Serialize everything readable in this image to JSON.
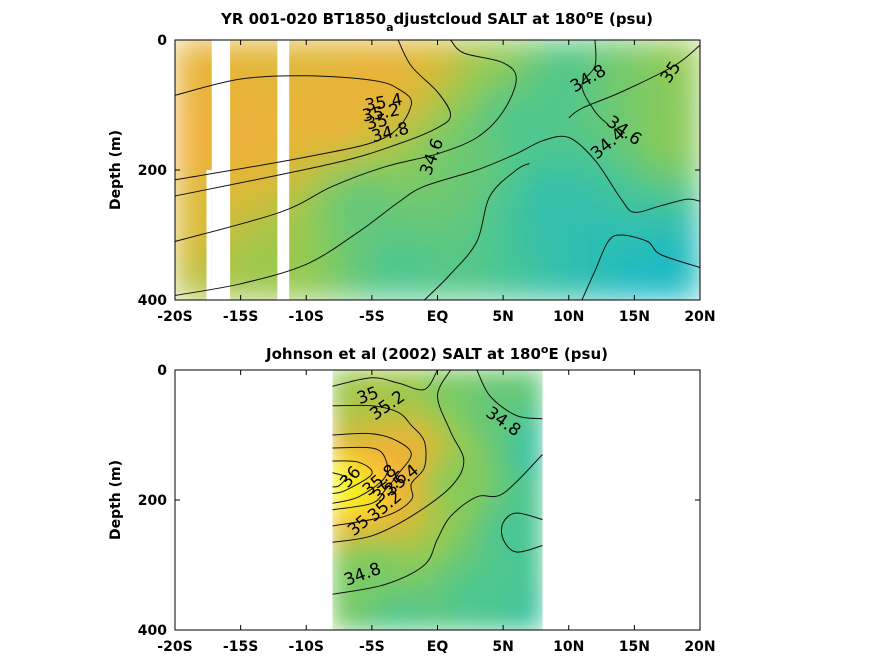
{
  "chart_data": [
    {
      "type": "contour",
      "title": {
        "main": "YR 001-020 BT1850",
        "subscript": "a",
        "rest": "djustcloud SALT at 180",
        "degree": "o",
        "tail": "E (psu)"
      },
      "xlabel": "",
      "ylabel": "Depth (m)",
      "xlim": [
        -20,
        20
      ],
      "ylim": [
        0,
        400
      ],
      "y_reversed": true,
      "colormap": [
        "#0db5d6",
        "#2fbfb0",
        "#4fc78d",
        "#8fcb53",
        "#d7bb35",
        "#f6ae3c",
        "#f8e81f",
        "#f5ff1a"
      ],
      "color_range": [
        34.2,
        36.2
      ],
      "xticks": [
        {
          "value": -20,
          "label": "-20S"
        },
        {
          "value": -15,
          "label": "-15S"
        },
        {
          "value": -10,
          "label": "-10S"
        },
        {
          "value": -5,
          "label": "-5S"
        },
        {
          "value": 0,
          "label": "EQ"
        },
        {
          "value": 5,
          "label": "5N"
        },
        {
          "value": 10,
          "label": "10N"
        },
        {
          "value": 15,
          "label": "15N"
        },
        {
          "value": 20,
          "label": "20N"
        }
      ],
      "yticks": [
        {
          "value": 0,
          "label": "0"
        },
        {
          "value": 200,
          "label": "200"
        },
        {
          "value": 400,
          "label": "400"
        }
      ],
      "missing_bands": [
        {
          "x": [
            -17.2,
            -15.8
          ],
          "depth": [
            0,
            400
          ]
        },
        {
          "x": [
            -17.6,
            -17.2
          ],
          "depth": [
            200,
            400
          ]
        },
        {
          "x": [
            -12.2,
            -11.3
          ],
          "depth": [
            0,
            400
          ]
        }
      ],
      "field_points": [
        {
          "x": -19,
          "depth": 20,
          "s": 35.5
        },
        {
          "x": -19,
          "depth": 150,
          "s": 35.6
        },
        {
          "x": -19,
          "depth": 300,
          "s": 35.4
        },
        {
          "x": -14,
          "depth": 150,
          "s": 35.55
        },
        {
          "x": -14,
          "depth": 350,
          "s": 35.1
        },
        {
          "x": -8,
          "depth": 120,
          "s": 35.55
        },
        {
          "x": -4,
          "depth": 60,
          "s": 35.55
        },
        {
          "x": -1,
          "depth": 20,
          "s": 35.4
        },
        {
          "x": -6,
          "depth": 250,
          "s": 34.85
        },
        {
          "x": -3,
          "depth": 350,
          "s": 34.75
        },
        {
          "x": 2,
          "depth": 180,
          "s": 34.9
        },
        {
          "x": 4,
          "depth": 20,
          "s": 35.1
        },
        {
          "x": 6,
          "depth": 120,
          "s": 34.75
        },
        {
          "x": 9,
          "depth": 250,
          "s": 34.5
        },
        {
          "x": 12,
          "depth": 320,
          "s": 34.45
        },
        {
          "x": 16,
          "depth": 380,
          "s": 34.3
        },
        {
          "x": 19,
          "depth": 360,
          "s": 34.35
        },
        {
          "x": 18,
          "depth": 150,
          "s": 35.05
        },
        {
          "x": 14,
          "depth": 60,
          "s": 34.95
        },
        {
          "x": 19,
          "depth": 30,
          "s": 35.1
        },
        {
          "x": 10,
          "depth": 60,
          "s": 34.75
        },
        {
          "x": -19,
          "depth": 395,
          "s": 35.2
        }
      ],
      "contours": [
        {
          "level": "35.4",
          "points": [
            [
              -20,
              85
            ],
            [
              -15,
              60
            ],
            [
              -10,
              55
            ],
            [
              -5,
              62
            ],
            [
              -3,
              75
            ],
            [
              -2,
              100
            ],
            [
              -4,
              150
            ],
            [
              -10,
              180
            ],
            [
              -20,
              215
            ]
          ]
        },
        {
          "level": "35.2",
          "points": [
            [
              -3,
              0
            ],
            [
              -2,
              40
            ],
            [
              0,
              80
            ],
            [
              1,
              115
            ],
            [
              0,
              135
            ],
            [
              -3,
              160
            ],
            [
              -8,
              190
            ],
            [
              -20,
              240
            ]
          ]
        },
        {
          "level": "35",
          "points": [
            [
              -20,
              310
            ],
            [
              -12,
              265
            ],
            [
              -8,
              225
            ],
            [
              -4,
              195
            ],
            [
              0,
              175
            ],
            [
              3,
              150
            ],
            [
              5,
              110
            ],
            [
              6,
              60
            ],
            [
              5,
              35
            ],
            [
              2,
              20
            ],
            [
              1,
              0
            ]
          ]
        },
        {
          "level": "35",
          "points": [
            [
              20,
              8
            ],
            [
              18,
              40
            ],
            [
              14,
              80
            ],
            [
              11,
              105
            ],
            [
              10,
              120
            ]
          ]
        },
        {
          "level": "34.8",
          "points": [
            [
              -20,
              393
            ],
            [
              -15,
              375
            ],
            [
              -10,
              345
            ],
            [
              -6,
              295
            ],
            [
              -3,
              250
            ],
            [
              -1,
              225
            ],
            [
              3,
              200
            ],
            [
              6,
              175
            ],
            [
              8,
              155
            ],
            [
              10,
              150
            ],
            [
              12,
              185
            ],
            [
              14,
              245
            ],
            [
              15,
              265
            ],
            [
              17,
              255
            ],
            [
              19,
              245
            ],
            [
              20,
              248
            ]
          ]
        },
        {
          "level": "34.8",
          "points": [
            [
              13,
              130
            ],
            [
              12,
              110
            ],
            [
              11,
              70
            ],
            [
              12,
              40
            ],
            [
              12,
              0
            ]
          ]
        },
        {
          "level": "34.6",
          "points": [
            [
              -1,
              400
            ],
            [
              1,
              360
            ],
            [
              3,
              310
            ],
            [
              4,
              240
            ],
            [
              6,
              200
            ],
            [
              7,
              190
            ]
          ]
        },
        {
          "level": "34.4",
          "points": [
            [
              11,
              400
            ],
            [
              12,
              355
            ],
            [
              13,
              310
            ],
            [
              14,
              300
            ],
            [
              16,
              310
            ],
            [
              17,
              330
            ],
            [
              20,
              350
            ]
          ]
        }
      ],
      "contour_labels": [
        {
          "text": "35.4",
          "x": -4.1,
          "depth": 97,
          "angle": -10
        },
        {
          "text": "35.2",
          "x": -4.3,
          "depth": 113,
          "angle": -10
        },
        {
          "text": "35",
          "x": -4.6,
          "depth": 127,
          "angle": -12
        },
        {
          "text": "34.8",
          "x": -3.6,
          "depth": 143,
          "angle": -14
        },
        {
          "text": "34.6",
          "x": -0.4,
          "depth": 180,
          "angle": -70
        },
        {
          "text": "34.8",
          "x": 11.5,
          "depth": 60,
          "angle": -30
        },
        {
          "text": "35",
          "x": 17.8,
          "depth": 50,
          "angle": -55
        },
        {
          "text": "34.6",
          "x": 14.2,
          "depth": 140,
          "angle": 35
        },
        {
          "text": "34.4",
          "x": 13,
          "depth": 160,
          "angle": -40
        }
      ]
    },
    {
      "type": "contour",
      "title": {
        "main": "Johnson et al (2002) SALT at 180",
        "subscript": "",
        "rest": "",
        "degree": "o",
        "tail": "E (psu)"
      },
      "xlabel": "",
      "ylabel": "Depth (m)",
      "xlim": [
        -20,
        20
      ],
      "ylim": [
        0,
        400
      ],
      "y_reversed": true,
      "colormap": [
        "#0db5d6",
        "#2fbfb0",
        "#4fc78d",
        "#8fcb53",
        "#d7bb35",
        "#f6ae3c",
        "#f8e81f",
        "#f5ff1a"
      ],
      "color_range": [
        34.2,
        36.2
      ],
      "data_x_range": [
        -8,
        8
      ],
      "xticks": [
        {
          "value": -20,
          "label": "-20S"
        },
        {
          "value": -15,
          "label": "-15S"
        },
        {
          "value": -10,
          "label": "-10S"
        },
        {
          "value": -5,
          "label": "-5S"
        },
        {
          "value": 0,
          "label": "EQ"
        },
        {
          "value": 5,
          "label": "5N"
        },
        {
          "value": 10,
          "label": "10N"
        },
        {
          "value": 15,
          "label": "15N"
        },
        {
          "value": 20,
          "label": "20N"
        }
      ],
      "yticks": [
        {
          "value": 0,
          "label": "0"
        },
        {
          "value": 200,
          "label": "200"
        },
        {
          "value": 400,
          "label": "400"
        }
      ],
      "field_points": [
        {
          "x": -7.5,
          "depth": 175,
          "s": 36.2
        },
        {
          "x": -5.5,
          "depth": 190,
          "s": 36.0
        },
        {
          "x": -4,
          "depth": 145,
          "s": 35.7
        },
        {
          "x": -2,
          "depth": 120,
          "s": 35.5
        },
        {
          "x": -6,
          "depth": 80,
          "s": 35.2
        },
        {
          "x": -3,
          "depth": 40,
          "s": 35.1
        },
        {
          "x": 1,
          "depth": 40,
          "s": 34.95
        },
        {
          "x": 1,
          "depth": 170,
          "s": 35.0
        },
        {
          "x": -5,
          "depth": 300,
          "s": 34.95
        },
        {
          "x": -3,
          "depth": 390,
          "s": 34.75
        },
        {
          "x": 4,
          "depth": 60,
          "s": 34.85
        },
        {
          "x": 6,
          "depth": 250,
          "s": 34.7
        },
        {
          "x": 7.8,
          "depth": 120,
          "s": 34.55
        },
        {
          "x": 7.8,
          "depth": 380,
          "s": 34.6
        },
        {
          "x": 3,
          "depth": 350,
          "s": 34.75
        },
        {
          "x": -7.8,
          "depth": 30,
          "s": 35.05
        },
        {
          "x": -7.8,
          "depth": 330,
          "s": 34.95
        }
      ],
      "contours": [
        {
          "level": "35",
          "points": [
            [
              -8,
              25
            ],
            [
              -5,
              12
            ],
            [
              -3,
              20
            ],
            [
              -1,
              30
            ],
            [
              0,
              0
            ]
          ]
        },
        {
          "level": "35.2",
          "points": [
            [
              -8,
              55
            ],
            [
              -5,
              55
            ],
            [
              -3,
              65
            ],
            [
              -2,
              85
            ],
            [
              -1,
              110
            ],
            [
              -1,
              150
            ],
            [
              -2,
              175
            ],
            [
              -2,
              200
            ],
            [
              -4,
              225
            ],
            [
              -8,
              240
            ]
          ]
        },
        {
          "level": "35.4",
          "points": [
            [
              -8,
              100
            ],
            [
              -5,
              98
            ],
            [
              -3,
              110
            ],
            [
              -2,
              130
            ],
            [
              -3,
              160
            ],
            [
              -4,
              185
            ],
            [
              -5,
              205
            ],
            [
              -8,
              215
            ]
          ]
        },
        {
          "level": "35.6",
          "points": [
            [
              -8,
              120
            ],
            [
              -5,
              120
            ],
            [
              -4,
              135
            ],
            [
              -4,
              165
            ],
            [
              -6,
              195
            ],
            [
              -8,
              205
            ]
          ]
        },
        {
          "level": "35.8",
          "points": [
            [
              -8,
              140
            ],
            [
              -6,
              142
            ],
            [
              -5,
              160
            ],
            [
              -7,
              185
            ],
            [
              -8,
              190
            ]
          ]
        },
        {
          "level": "36",
          "points": [
            [
              -8,
              158
            ],
            [
              -7,
              165
            ],
            [
              -7.5,
              178
            ],
            [
              -8,
              180
            ]
          ]
        },
        {
          "level": "35",
          "points": [
            [
              -8,
              265
            ],
            [
              -5,
              255
            ],
            [
              -2,
              225
            ],
            [
              1,
              180
            ],
            [
              2,
              140
            ],
            [
              1,
              95
            ],
            [
              0,
              40
            ],
            [
              1,
              0
            ]
          ]
        },
        {
          "level": "34.8",
          "points": [
            [
              -8,
              345
            ],
            [
              -4,
              330
            ],
            [
              -1,
              300
            ],
            [
              0,
              260
            ],
            [
              1,
              225
            ],
            [
              3,
              195
            ],
            [
              5,
              190
            ],
            [
              8,
              130
            ]
          ]
        },
        {
          "level": "34.8",
          "points": [
            [
              3,
              0
            ],
            [
              4,
              40
            ],
            [
              6,
              70
            ],
            [
              8,
              75
            ]
          ]
        },
        {
          "level": "34.8",
          "points": [
            [
              8,
              230
            ],
            [
              6,
              220
            ],
            [
              5,
              235
            ],
            [
              5,
              260
            ],
            [
              6,
              280
            ],
            [
              8,
              270
            ]
          ]
        }
      ],
      "contour_labels": [
        {
          "text": "35",
          "x": -5.3,
          "depth": 40,
          "angle": -20
        },
        {
          "text": "35.2",
          "x": -3.8,
          "depth": 55,
          "angle": -35
        },
        {
          "text": "36",
          "x": -6.6,
          "depth": 165,
          "angle": -50
        },
        {
          "text": "35.8",
          "x": -4.4,
          "depth": 170,
          "angle": -40
        },
        {
          "text": "35.6",
          "x": -3.6,
          "depth": 180,
          "angle": -40
        },
        {
          "text": "35.4",
          "x": -2.7,
          "depth": 170,
          "angle": -40
        },
        {
          "text": "35.2",
          "x": -4,
          "depth": 210,
          "angle": -40
        },
        {
          "text": "35",
          "x": -6,
          "depth": 240,
          "angle": -40
        },
        {
          "text": "34.8",
          "x": -5.7,
          "depth": 315,
          "angle": -20
        },
        {
          "text": "34.8",
          "x": 5,
          "depth": 80,
          "angle": 35
        }
      ]
    }
  ]
}
